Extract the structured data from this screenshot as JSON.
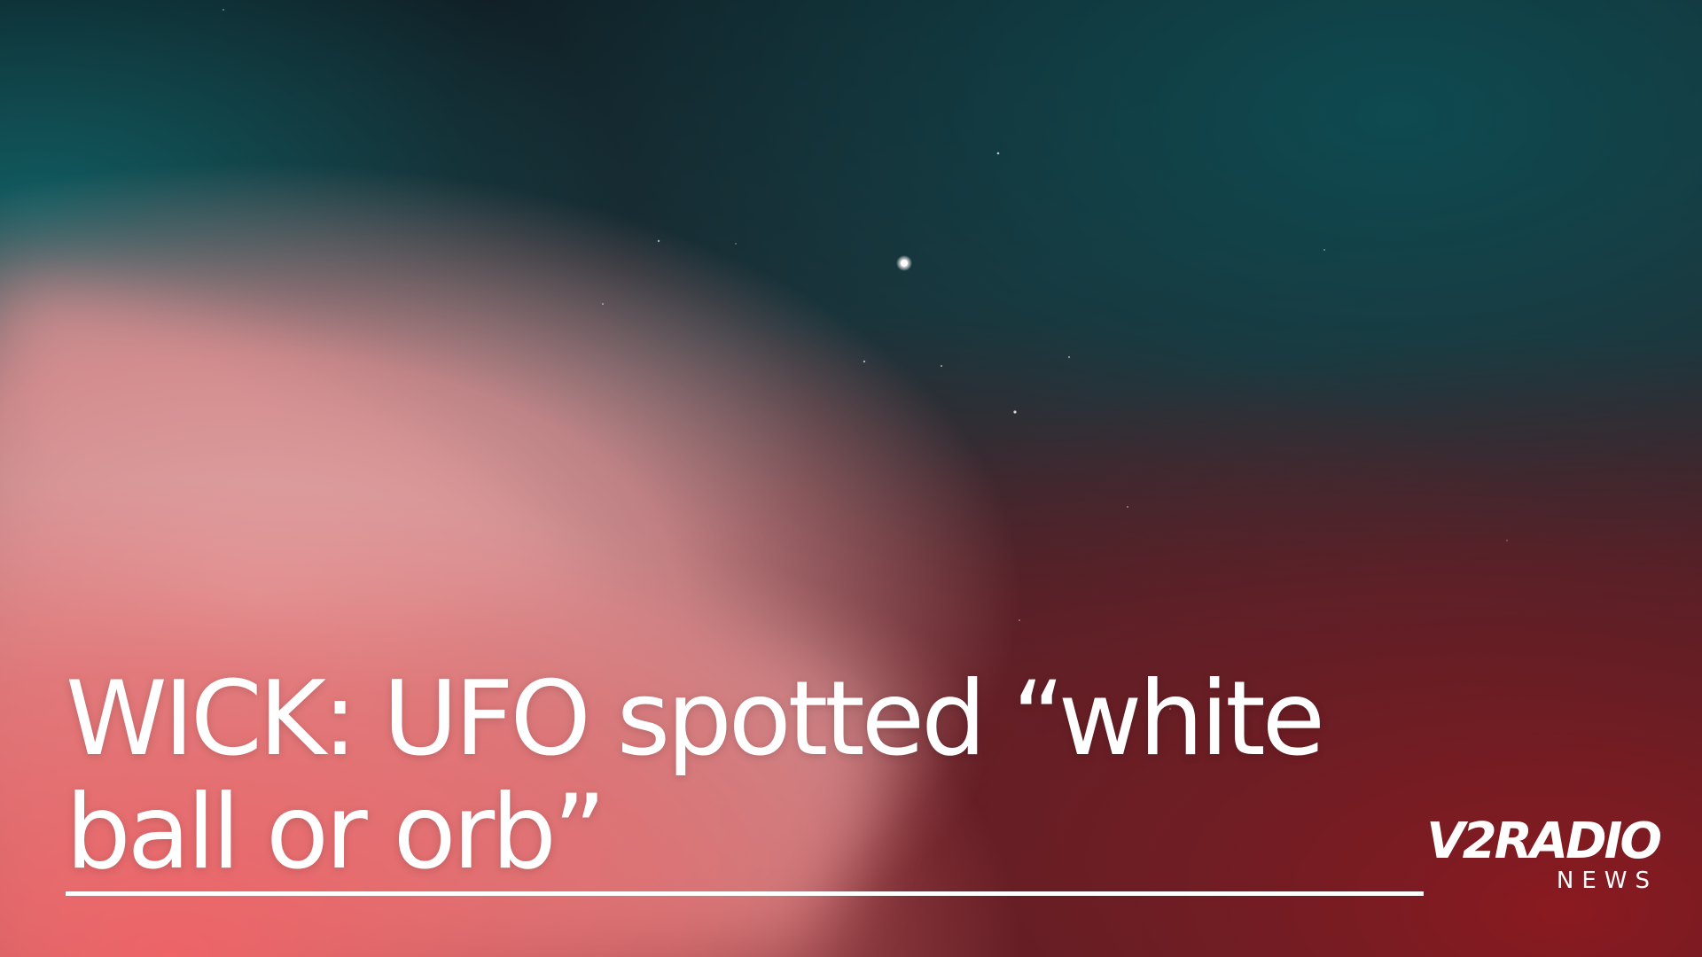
{
  "headline": {
    "line1": "WICK: UFO spotted “white",
    "line2": "ball or orb”"
  },
  "brand": {
    "name": "V2RADIO",
    "sub": "NEWS"
  },
  "colors": {
    "sky_dark": "#13242b",
    "teal_glow": "#0e5457",
    "pink_cloud": "#e3a3a5",
    "coral": "#e8696b",
    "deep_red": "#7a1c22",
    "text": "#ffffff"
  }
}
